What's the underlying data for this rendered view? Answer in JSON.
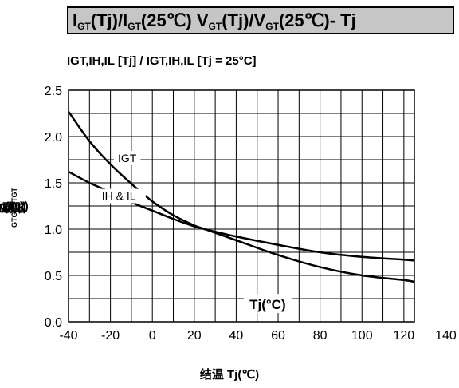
{
  "title": {
    "parts": [
      {
        "text": "I",
        "sub": false
      },
      {
        "text": "GT",
        "sub": true
      },
      {
        "text": "(Tj)/I",
        "sub": false
      },
      {
        "text": "GT",
        "sub": true
      },
      {
        "text": "(25℃) V",
        "sub": false
      },
      {
        "text": "GT",
        "sub": true
      },
      {
        "text": "(Tj)/V",
        "sub": false
      },
      {
        "text": "GT",
        "sub": true
      },
      {
        "text": "(25℃)- Tj",
        "sub": false
      }
    ]
  },
  "chart_data": {
    "type": "line",
    "subtitle": "IGT,IH,IL [Tj] / IGT,IH,IL [Tj = 25°C]",
    "xlabel": "结温 Tj(℃)",
    "ylabel_parts": [
      {
        "text": "比值 I",
        "sub": false
      },
      {
        "text": "GT",
        "sub": true
      },
      {
        "text": "(Tj)/I",
        "sub": false
      },
      {
        "text": "GT",
        "sub": true
      },
      {
        "text": " V",
        "sub": false
      },
      {
        "text": "GT",
        "sub": true
      },
      {
        "text": "(Tj)/V",
        "sub": false
      },
      {
        "text": "GT",
        "sub": true
      },
      {
        "text": "(25℃)",
        "sub": false
      }
    ],
    "xlim": [
      -40,
      140
    ],
    "ylim": [
      0,
      2.5
    ],
    "x_ticks": [
      "-40",
      "-20",
      "0",
      "20",
      "40",
      "60",
      "80",
      "100",
      "120",
      "140"
    ],
    "y_ticks": [
      "0.0",
      "0.5",
      "1.0",
      "1.5",
      "2.0",
      "2.5"
    ],
    "grid": true,
    "inner_label": "Tj(°C)",
    "series": [
      {
        "name": "IGT",
        "x": [
          -40,
          -30,
          -20,
          -10,
          0,
          10,
          20,
          25,
          40,
          60,
          80,
          100,
          120,
          125
        ],
        "y": [
          2.27,
          1.95,
          1.7,
          1.49,
          1.3,
          1.15,
          1.04,
          1.0,
          0.88,
          0.72,
          0.59,
          0.5,
          0.45,
          0.43
        ]
      },
      {
        "name": "IH & IL",
        "x": [
          -40,
          -30,
          -20,
          -10,
          0,
          10,
          20,
          25,
          40,
          60,
          80,
          100,
          120,
          125
        ],
        "y": [
          1.62,
          1.5,
          1.4,
          1.29,
          1.2,
          1.11,
          1.03,
          1.0,
          0.92,
          0.83,
          0.75,
          0.7,
          0.67,
          0.66
        ]
      }
    ]
  }
}
